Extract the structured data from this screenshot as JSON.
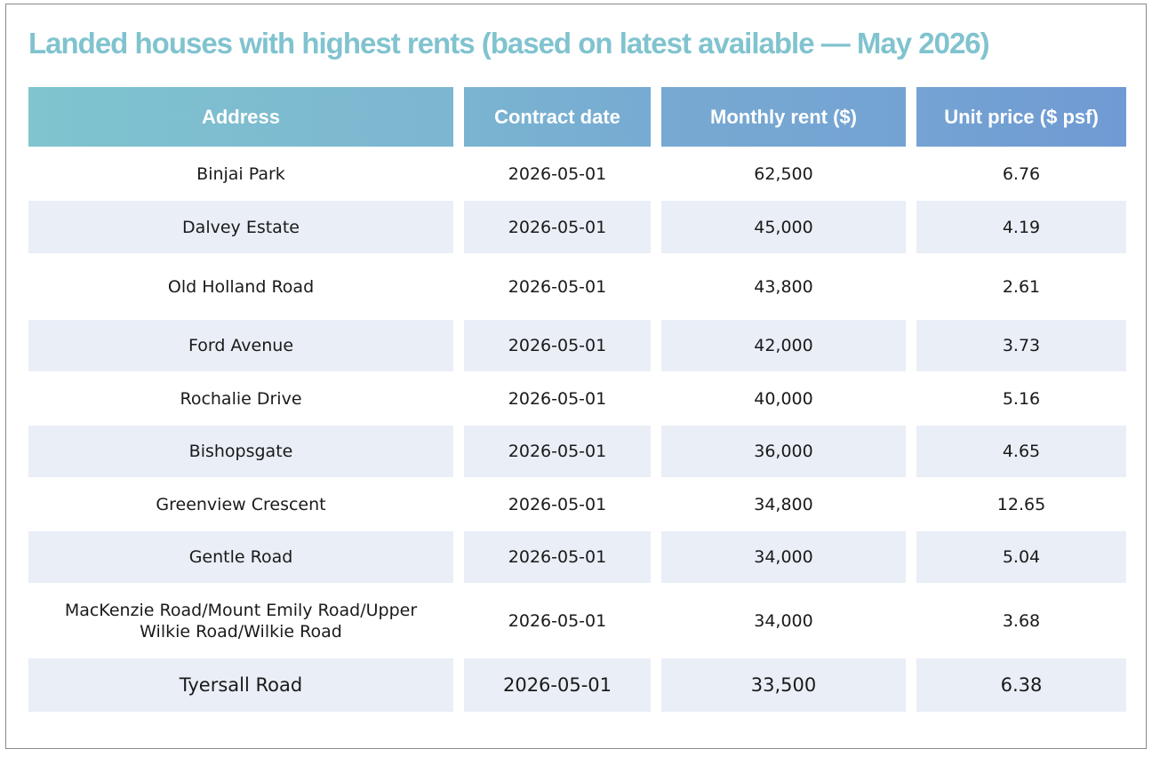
{
  "header": {
    "title": "Landed houses with highest rents (based on latest available — May 2026)"
  },
  "table": {
    "columns": [
      "Address",
      "Contract date",
      "Monthly rent ($)",
      "Unit price ($ psf)"
    ],
    "rows": [
      [
        "Binjai Park",
        "2026-05-01",
        "62,500",
        "6.76"
      ],
      [
        "Dalvey Estate",
        "2026-05-01",
        "45,000",
        "4.19"
      ],
      [
        "Old Holland Road",
        "2026-05-01",
        "43,800",
        "2.61"
      ],
      [
        "Ford Avenue",
        "2026-05-01",
        "42,000",
        "3.73"
      ],
      [
        "Rochalie Drive",
        "2026-05-01",
        "40,000",
        "5.16"
      ],
      [
        "Bishopsgate",
        "2026-05-01",
        "36,000",
        "4.65"
      ],
      [
        "Greenview Crescent",
        "2026-05-01",
        "34,800",
        "12.65"
      ],
      [
        "Gentle Road",
        "2026-05-01",
        "34,000",
        "5.04"
      ],
      [
        "MacKenzie Road/Mount Emily Road/Upper Wilkie Road/Wilkie Road",
        "2026-05-01",
        "34,000",
        "3.68"
      ],
      [
        "Tyersall Road",
        "2026-05-01",
        "33,500",
        "6.38"
      ]
    ]
  }
}
